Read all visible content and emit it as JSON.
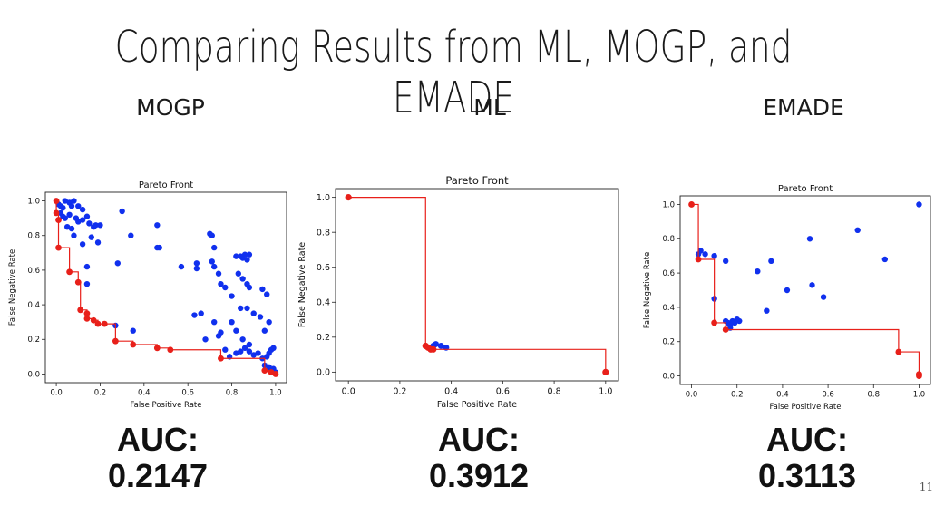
{
  "slide": {
    "title": "Comparing Results from ML, MOGP, and EMADE",
    "page_number": "11"
  },
  "panels": [
    {
      "label": "MOGP",
      "auc_label": "AUC:",
      "auc_value": "0.2147"
    },
    {
      "label": "ML",
      "auc_label": "AUC:",
      "auc_value": "0.3912"
    },
    {
      "label": "EMADE",
      "auc_label": "AUC:",
      "auc_value": "0.3113"
    }
  ],
  "colors": {
    "points": "#1030ee",
    "front": "#e8201a"
  },
  "chart_data": [
    {
      "type": "scatter",
      "title": "Pareto Front",
      "xlabel": "False Positive Rate",
      "ylabel": "False Negative Rate",
      "xlim": [
        -0.05,
        1.05
      ],
      "ylim": [
        -0.05,
        1.05
      ],
      "xticks": [
        0.0,
        0.2,
        0.4,
        0.6,
        0.8,
        1.0
      ],
      "yticks": [
        0.0,
        0.2,
        0.4,
        0.6,
        0.8,
        1.0
      ],
      "series": [
        {
          "role": "population",
          "points": [
            [
              0.0,
              1.0
            ],
            [
              0.01,
              0.98
            ],
            [
              0.02,
              0.97
            ],
            [
              0.03,
              0.96
            ],
            [
              0.04,
              1.0
            ],
            [
              0.06,
              0.99
            ],
            [
              0.07,
              0.97
            ],
            [
              0.08,
              1.0
            ],
            [
              0.1,
              0.97
            ],
            [
              0.12,
              0.95
            ],
            [
              0.02,
              0.93
            ],
            [
              0.04,
              0.9
            ],
            [
              0.05,
              0.85
            ],
            [
              0.07,
              0.84
            ],
            [
              0.09,
              0.9
            ],
            [
              0.1,
              0.88
            ],
            [
              0.12,
              0.89
            ],
            [
              0.14,
              0.91
            ],
            [
              0.15,
              0.87
            ],
            [
              0.17,
              0.85
            ],
            [
              0.18,
              0.86
            ],
            [
              0.2,
              0.86
            ],
            [
              0.03,
              0.91
            ],
            [
              0.06,
              0.92
            ],
            [
              0.08,
              0.8
            ],
            [
              0.12,
              0.75
            ],
            [
              0.16,
              0.79
            ],
            [
              0.19,
              0.76
            ],
            [
              0.14,
              0.62
            ],
            [
              0.14,
              0.52
            ],
            [
              0.3,
              0.94
            ],
            [
              0.28,
              0.64
            ],
            [
              0.34,
              0.8
            ],
            [
              0.46,
              0.86
            ],
            [
              0.46,
              0.73
            ],
            [
              0.47,
              0.73
            ],
            [
              0.35,
              0.25
            ],
            [
              0.27,
              0.28
            ],
            [
              0.57,
              0.62
            ],
            [
              0.64,
              0.64
            ],
            [
              0.64,
              0.61
            ],
            [
              0.7,
              0.81
            ],
            [
              0.71,
              0.8
            ],
            [
              0.72,
              0.73
            ],
            [
              0.71,
              0.65
            ],
            [
              0.72,
              0.62
            ],
            [
              0.74,
              0.58
            ],
            [
              0.75,
              0.52
            ],
            [
              0.77,
              0.5
            ],
            [
              0.8,
              0.45
            ],
            [
              0.82,
              0.68
            ],
            [
              0.84,
              0.68
            ],
            [
              0.85,
              0.67
            ],
            [
              0.86,
              0.69
            ],
            [
              0.87,
              0.66
            ],
            [
              0.88,
              0.69
            ],
            [
              0.83,
              0.58
            ],
            [
              0.85,
              0.55
            ],
            [
              0.87,
              0.52
            ],
            [
              0.88,
              0.5
            ],
            [
              0.84,
              0.38
            ],
            [
              0.87,
              0.38
            ],
            [
              0.9,
              0.35
            ],
            [
              0.93,
              0.33
            ],
            [
              0.94,
              0.49
            ],
            [
              0.96,
              0.46
            ],
            [
              0.8,
              0.3
            ],
            [
              0.82,
              0.25
            ],
            [
              0.85,
              0.2
            ],
            [
              0.88,
              0.17
            ],
            [
              0.74,
              0.22
            ],
            [
              0.77,
              0.14
            ],
            [
              0.79,
              0.1
            ],
            [
              0.82,
              0.12
            ],
            [
              0.84,
              0.13
            ],
            [
              0.86,
              0.15
            ],
            [
              0.88,
              0.13
            ],
            [
              0.9,
              0.11
            ],
            [
              0.92,
              0.12
            ],
            [
              0.94,
              0.09
            ],
            [
              0.96,
              0.1
            ],
            [
              0.97,
              0.12
            ],
            [
              0.98,
              0.14
            ],
            [
              0.99,
              0.15
            ],
            [
              0.95,
              0.05
            ],
            [
              0.97,
              0.04
            ],
            [
              0.98,
              0.02
            ],
            [
              0.99,
              0.03
            ],
            [
              1.0,
              0.01
            ],
            [
              0.72,
              0.3
            ],
            [
              0.66,
              0.35
            ],
            [
              0.75,
              0.24
            ],
            [
              0.68,
              0.2
            ],
            [
              0.63,
              0.34
            ],
            [
              0.95,
              0.25
            ],
            [
              0.97,
              0.3
            ]
          ]
        },
        {
          "role": "pareto",
          "points": [
            [
              0.0,
              1.0
            ],
            [
              0.0,
              0.93
            ],
            [
              0.01,
              0.89
            ],
            [
              0.01,
              0.73
            ],
            [
              0.06,
              0.59
            ],
            [
              0.1,
              0.53
            ],
            [
              0.11,
              0.37
            ],
            [
              0.14,
              0.35
            ],
            [
              0.14,
              0.32
            ],
            [
              0.17,
              0.31
            ],
            [
              0.19,
              0.29
            ],
            [
              0.22,
              0.29
            ],
            [
              0.27,
              0.19
            ],
            [
              0.35,
              0.17
            ],
            [
              0.46,
              0.15
            ],
            [
              0.52,
              0.14
            ],
            [
              0.75,
              0.09
            ],
            [
              0.95,
              0.02
            ],
            [
              0.98,
              0.01
            ],
            [
              1.0,
              0.0
            ]
          ]
        }
      ]
    },
    {
      "type": "scatter",
      "title": "Pareto Front",
      "xlabel": "False Positive Rate",
      "ylabel": "False Negative Rate",
      "xlim": [
        -0.05,
        1.05
      ],
      "ylim": [
        -0.05,
        1.05
      ],
      "xticks": [
        0.0,
        0.2,
        0.4,
        0.6,
        0.8,
        1.0
      ],
      "yticks": [
        0.0,
        0.2,
        0.4,
        0.6,
        0.8,
        1.0
      ],
      "series": [
        {
          "role": "population",
          "points": [
            [
              0.33,
              0.15
            ],
            [
              0.34,
              0.16
            ],
            [
              0.36,
              0.15
            ],
            [
              0.38,
              0.14
            ]
          ]
        },
        {
          "role": "pareto",
          "points": [
            [
              0.0,
              1.0
            ],
            [
              0.3,
              0.15
            ],
            [
              0.31,
              0.14
            ],
            [
              0.32,
              0.13
            ],
            [
              0.33,
              0.13
            ],
            [
              1.0,
              0.0
            ]
          ]
        }
      ]
    },
    {
      "type": "scatter",
      "title": "Pareto Front",
      "xlabel": "False Positive Rate",
      "ylabel": "False Negative Rate",
      "xlim": [
        -0.05,
        1.05
      ],
      "ylim": [
        -0.05,
        1.05
      ],
      "xticks": [
        0.0,
        0.2,
        0.4,
        0.6,
        0.8,
        1.0
      ],
      "yticks": [
        0.0,
        0.2,
        0.4,
        0.6,
        0.8,
        1.0
      ],
      "series": [
        {
          "role": "population",
          "points": [
            [
              1.0,
              1.0
            ],
            [
              0.03,
              0.71
            ],
            [
              0.04,
              0.73
            ],
            [
              0.06,
              0.71
            ],
            [
              0.1,
              0.7
            ],
            [
              0.15,
              0.67
            ],
            [
              0.1,
              0.45
            ],
            [
              0.29,
              0.61
            ],
            [
              0.35,
              0.67
            ],
            [
              0.52,
              0.8
            ],
            [
              0.73,
              0.85
            ],
            [
              0.85,
              0.68
            ],
            [
              0.42,
              0.5
            ],
            [
              0.53,
              0.53
            ],
            [
              0.58,
              0.46
            ],
            [
              0.33,
              0.38
            ],
            [
              0.15,
              0.32
            ],
            [
              0.16,
              0.31
            ],
            [
              0.17,
              0.3
            ],
            [
              0.18,
              0.32
            ],
            [
              0.19,
              0.31
            ],
            [
              0.2,
              0.33
            ],
            [
              0.21,
              0.32
            ],
            [
              0.17,
              0.28
            ]
          ]
        },
        {
          "role": "pareto",
          "points": [
            [
              0.0,
              1.0
            ],
            [
              0.03,
              0.68
            ],
            [
              0.1,
              0.31
            ],
            [
              0.15,
              0.27
            ],
            [
              0.91,
              0.14
            ],
            [
              1.0,
              0.01
            ],
            [
              1.0,
              0.0
            ]
          ]
        }
      ]
    }
  ]
}
